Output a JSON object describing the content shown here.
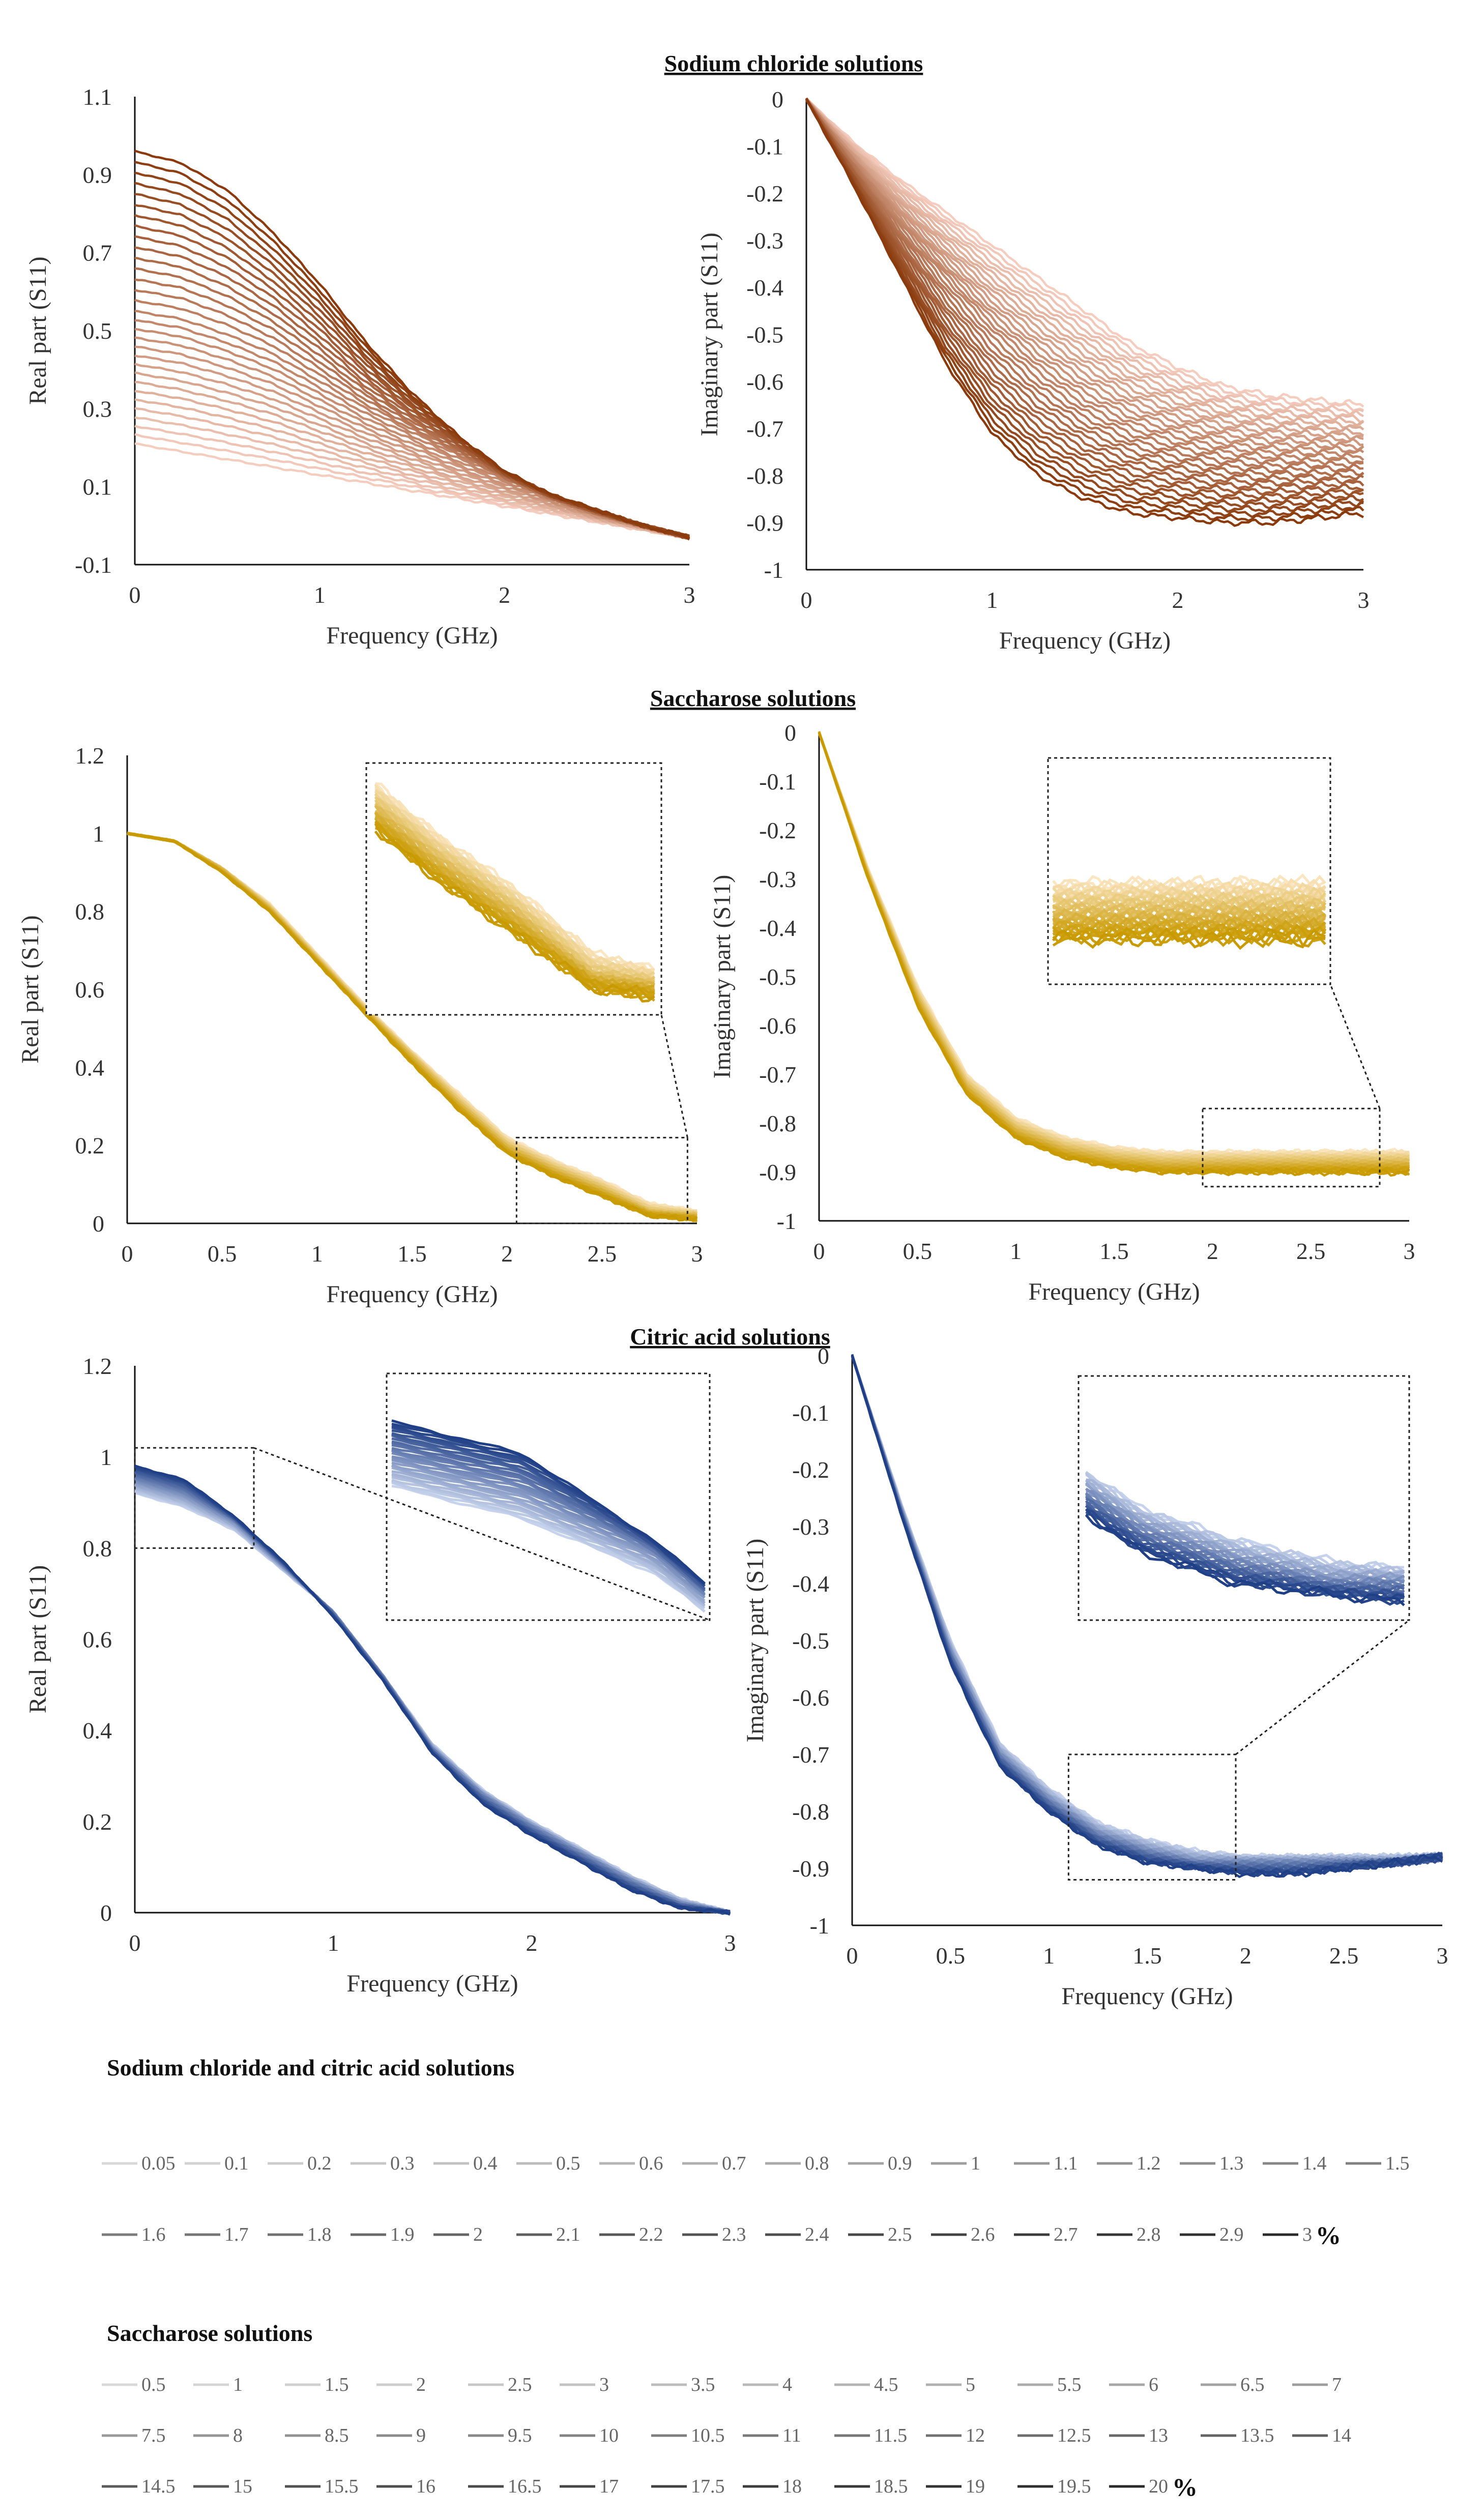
{
  "section_titles": {
    "nacl": "Sodium chloride solutions",
    "saccharose": "Saccharose solutions",
    "citric": "Citric acid solutions"
  },
  "legends": {
    "nacl_citric": {
      "title": "Sodium chloride and citric acid solutions",
      "entries": [
        "0.05",
        "0.1",
        "0.2",
        "0.3",
        "0.4",
        "0.5",
        "0.6",
        "0.7",
        "0.8",
        "0.9",
        "1",
        "1.1",
        "1.2",
        "1.3",
        "1.4",
        "1.5",
        "1.6",
        "1.7",
        "1.8",
        "1.9",
        "2",
        "2.1",
        "2.2",
        "2.3",
        "2.4",
        "2.5",
        "2.6",
        "2.7",
        "2.8",
        "2.9",
        "3"
      ],
      "unit": "%"
    },
    "saccharose": {
      "title": "Saccharose solutions",
      "entries": [
        "0.5",
        "1",
        "1.5",
        "2",
        "2.5",
        "3",
        "3.5",
        "4",
        "4.5",
        "5",
        "5.5",
        "6",
        "6.5",
        "7",
        "7.5",
        "8",
        "8.5",
        "9",
        "9.5",
        "10",
        "10.5",
        "11",
        "11.5",
        "12",
        "12.5",
        "13",
        "13.5",
        "14",
        "14.5",
        "15",
        "15.5",
        "16",
        "16.5",
        "17",
        "17.5",
        "18",
        "18.5",
        "19",
        "19.5",
        "20"
      ],
      "unit": "%"
    }
  },
  "colors": {
    "nacl_light": "#f5cdbf",
    "nacl_dark": "#8a3a0c",
    "sacch_light": "#fbe6c2",
    "sacch_dark": "#c99a00",
    "citric_light": "#c7d3ec",
    "citric_dark": "#1f3f86"
  },
  "chart_data": [
    {
      "id": "nacl_real",
      "type": "line",
      "title": "",
      "xlabel": "Frequency (GHz)",
      "ylabel": "Real part (S11)",
      "xlim": [
        0,
        3
      ],
      "ylim": [
        -0.1,
        1.1
      ],
      "xticks": [
        "0",
        "1",
        "2",
        "3"
      ],
      "yticks": [
        "-0.1",
        "0.1",
        "0.3",
        "0.5",
        "0.7",
        "0.9",
        "1.1"
      ],
      "x": [
        0,
        0.25,
        0.5,
        0.75,
        1,
        1.25,
        1.5,
        1.75,
        2,
        2.25,
        2.5,
        2.75,
        3
      ],
      "series": [
        {
          "name": "0.05 %",
          "values": [
            0.21,
            0.19,
            0.17,
            0.15,
            0.13,
            0.11,
            0.09,
            0.07,
            0.05,
            0.03,
            0.01,
            -0.01,
            -0.03
          ]
        },
        {
          "name": "1.5 %",
          "values": [
            0.55,
            0.53,
            0.49,
            0.44,
            0.37,
            0.3,
            0.24,
            0.18,
            0.12,
            0.07,
            0.03,
            0.0,
            -0.03
          ]
        },
        {
          "name": "3 %",
          "values": [
            0.96,
            0.93,
            0.86,
            0.75,
            0.62,
            0.47,
            0.34,
            0.23,
            0.14,
            0.08,
            0.04,
            0.0,
            -0.03
          ]
        }
      ],
      "curve_count": 31
    },
    {
      "id": "nacl_imag",
      "type": "line",
      "title": "",
      "xlabel": "Frequency (GHz)",
      "ylabel": "Imaginary part (S11)",
      "xlim": [
        0,
        3
      ],
      "ylim": [
        -1,
        0
      ],
      "xticks": [
        "0",
        "1",
        "2",
        "3"
      ],
      "yticks": [
        "0",
        "-0.1",
        "-0.2",
        "-0.3",
        "-0.4",
        "-0.5",
        "-0.6",
        "-0.7",
        "-0.8",
        "-0.9",
        "-1"
      ],
      "x": [
        0,
        0.25,
        0.5,
        0.75,
        1,
        1.25,
        1.5,
        1.75,
        2,
        2.25,
        2.5,
        2.75,
        3
      ],
      "series": [
        {
          "name": "0.05 %",
          "values": [
            0,
            -0.09,
            -0.17,
            -0.24,
            -0.31,
            -0.38,
            -0.45,
            -0.52,
            -0.57,
            -0.61,
            -0.63,
            -0.64,
            -0.65
          ]
        },
        {
          "name": "1.5 %",
          "values": [
            0,
            -0.13,
            -0.26,
            -0.38,
            -0.49,
            -0.58,
            -0.65,
            -0.7,
            -0.73,
            -0.75,
            -0.76,
            -0.76,
            -0.76
          ]
        },
        {
          "name": "3 %",
          "values": [
            0,
            -0.18,
            -0.37,
            -0.56,
            -0.71,
            -0.8,
            -0.85,
            -0.88,
            -0.89,
            -0.9,
            -0.9,
            -0.89,
            -0.88
          ]
        }
      ],
      "curve_count": 31
    },
    {
      "id": "sacch_real",
      "type": "line",
      "title": "",
      "xlabel": "Frequency (GHz)",
      "ylabel": "Real part (S11)",
      "xlim": [
        0,
        3
      ],
      "ylim": [
        0,
        1.2
      ],
      "xticks": [
        "0",
        "0.5",
        "1",
        "1.5",
        "2",
        "2.5",
        "3"
      ],
      "yticks": [
        "0",
        "0.2",
        "0.4",
        "0.6",
        "0.8",
        "1",
        "1.2"
      ],
      "x": [
        0,
        0.25,
        0.5,
        0.75,
        1,
        1.25,
        1.5,
        1.75,
        2,
        2.25,
        2.5,
        2.75,
        3
      ],
      "series": [
        {
          "name": "0.5 %",
          "values": [
            1.0,
            0.98,
            0.91,
            0.82,
            0.69,
            0.56,
            0.44,
            0.33,
            0.22,
            0.16,
            0.11,
            0.05,
            0.03
          ]
        },
        {
          "name": "10 %",
          "values": [
            1.0,
            0.98,
            0.91,
            0.81,
            0.68,
            0.55,
            0.43,
            0.31,
            0.2,
            0.14,
            0.09,
            0.03,
            0.02
          ]
        },
        {
          "name": "20 %",
          "values": [
            1.0,
            0.98,
            0.9,
            0.8,
            0.67,
            0.54,
            0.41,
            0.29,
            0.18,
            0.12,
            0.07,
            0.02,
            0.01
          ]
        }
      ],
      "curve_count": 40,
      "inset": {
        "zoom_x": [
          2.05,
          2.95
        ],
        "zoom_y": [
          0.0,
          0.22
        ]
      }
    },
    {
      "id": "sacch_imag",
      "type": "line",
      "title": "",
      "xlabel": "Frequency (GHz)",
      "ylabel": "Imaginary part (S11)",
      "xlim": [
        0,
        3
      ],
      "ylim": [
        -1,
        0
      ],
      "xticks": [
        "0",
        "0.5",
        "1",
        "1.5",
        "2",
        "2.5",
        "3"
      ],
      "yticks": [
        "0",
        "-0.1",
        "-0.2",
        "-0.3",
        "-0.4",
        "-0.5",
        "-0.6",
        "-0.7",
        "-0.8",
        "-0.9",
        "-1"
      ],
      "x": [
        0,
        0.25,
        0.5,
        0.75,
        1,
        1.25,
        1.5,
        1.75,
        2,
        2.25,
        2.5,
        2.75,
        3
      ],
      "series": [
        {
          "name": "0.5 %",
          "values": [
            0,
            -0.28,
            -0.52,
            -0.7,
            -0.79,
            -0.83,
            -0.85,
            -0.86,
            -0.86,
            -0.86,
            -0.86,
            -0.86,
            -0.86
          ]
        },
        {
          "name": "10 %",
          "values": [
            0,
            -0.29,
            -0.54,
            -0.72,
            -0.81,
            -0.85,
            -0.87,
            -0.88,
            -0.88,
            -0.88,
            -0.88,
            -0.88,
            -0.88
          ]
        },
        {
          "name": "20 %",
          "values": [
            0,
            -0.3,
            -0.56,
            -0.74,
            -0.83,
            -0.87,
            -0.89,
            -0.9,
            -0.9,
            -0.9,
            -0.9,
            -0.9,
            -0.9
          ]
        }
      ],
      "curve_count": 40,
      "inset": {
        "zoom_x": [
          1.95,
          2.85
        ],
        "zoom_y": [
          -0.93,
          -0.77
        ]
      }
    },
    {
      "id": "citric_real",
      "type": "line",
      "title": "",
      "xlabel": "Frequency (GHz)",
      "ylabel": "Real part (S11)",
      "xlim": [
        0,
        3
      ],
      "ylim": [
        0,
        1.2
      ],
      "xticks": [
        "0",
        "1",
        "2",
        "3"
      ],
      "yticks": [
        "0",
        "0.2",
        "0.4",
        "0.6",
        "0.8",
        "1",
        "1.2"
      ],
      "x": [
        0,
        0.25,
        0.5,
        0.75,
        1,
        1.25,
        1.5,
        1.75,
        2,
        2.25,
        2.5,
        2.75,
        3
      ],
      "series": [
        {
          "name": "0.05 %",
          "values": [
            0.92,
            0.89,
            0.84,
            0.75,
            0.66,
            0.52,
            0.37,
            0.27,
            0.2,
            0.14,
            0.08,
            0.03,
            0.0
          ]
        },
        {
          "name": "1.5 %",
          "values": [
            0.95,
            0.92,
            0.86,
            0.76,
            0.66,
            0.52,
            0.36,
            0.26,
            0.19,
            0.13,
            0.07,
            0.02,
            0.0
          ]
        },
        {
          "name": "3 %",
          "values": [
            0.98,
            0.95,
            0.87,
            0.77,
            0.65,
            0.51,
            0.35,
            0.24,
            0.17,
            0.11,
            0.05,
            0.01,
            0.0
          ]
        }
      ],
      "curve_count": 31,
      "inset": {
        "zoom_x": [
          0.0,
          0.6
        ],
        "zoom_y": [
          0.8,
          1.02
        ]
      }
    },
    {
      "id": "citric_imag",
      "type": "line",
      "title": "",
      "xlabel": "Frequency (GHz)",
      "ylabel": "Imaginary part (S11)",
      "xlim": [
        0,
        3
      ],
      "ylim": [
        -1,
        0
      ],
      "xticks": [
        "0",
        "0.5",
        "1",
        "1.5",
        "2",
        "2.5",
        "3"
      ],
      "yticks": [
        "0",
        "-0.1",
        "-0.2",
        "-0.3",
        "-0.4",
        "-0.5",
        "-0.6",
        "-0.7",
        "-0.8",
        "-0.9",
        "-1"
      ],
      "x": [
        0,
        0.25,
        0.5,
        0.75,
        1,
        1.25,
        1.5,
        1.75,
        2,
        2.25,
        2.5,
        2.75,
        3
      ],
      "series": [
        {
          "name": "0.05 %",
          "values": [
            0,
            -0.26,
            -0.5,
            -0.68,
            -0.76,
            -0.82,
            -0.85,
            -0.87,
            -0.88,
            -0.88,
            -0.88,
            -0.88,
            -0.88
          ]
        },
        {
          "name": "1.5 %",
          "values": [
            0,
            -0.27,
            -0.52,
            -0.7,
            -0.78,
            -0.84,
            -0.87,
            -0.89,
            -0.89,
            -0.89,
            -0.89,
            -0.89,
            -0.88
          ]
        },
        {
          "name": "3 %",
          "values": [
            0,
            -0.28,
            -0.54,
            -0.72,
            -0.8,
            -0.86,
            -0.89,
            -0.9,
            -0.91,
            -0.91,
            -0.9,
            -0.89,
            -0.88
          ]
        }
      ],
      "curve_count": 31,
      "inset": {
        "zoom_x": [
          1.1,
          1.95
        ],
        "zoom_y": [
          -0.92,
          -0.7
        ]
      }
    }
  ]
}
